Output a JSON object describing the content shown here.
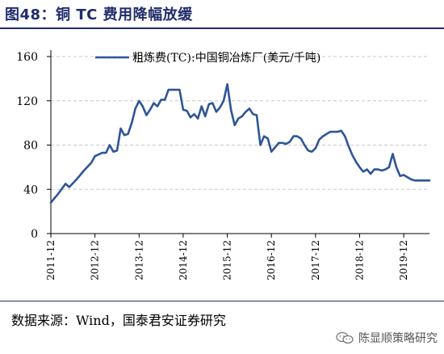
{
  "figure": {
    "title": "图48：铜 TC 费用降幅放缓",
    "source": "数据来源：Wind，国泰君安证券研究",
    "watermark": "陈显顺策略研究"
  },
  "colors": {
    "line": "#2e5597",
    "title": "#1f2d6b",
    "grid": "#c8c8c8"
  },
  "chart_data": {
    "type": "line",
    "title": "",
    "xlabel": "",
    "ylabel": "",
    "ylim": [
      0,
      160
    ],
    "yticks": [
      0,
      40,
      80,
      120,
      160
    ],
    "xlim": [
      "2011-12",
      "2020-07"
    ],
    "xticks": [
      "2011-12",
      "2012-12",
      "2013-12",
      "2014-12",
      "2015-12",
      "2016-12",
      "2017-12",
      "2018-12",
      "2019-12"
    ],
    "grid": "horizontal dashed",
    "legend": "top",
    "series": [
      {
        "name": "粗炼费(TC):中国铜冶炼厂(美元/千吨)",
        "x": [
          "2011-12",
          "2012-02",
          "2012-04",
          "2012-05",
          "2012-07",
          "2012-09",
          "2012-11",
          "2012-12",
          "2013-02",
          "2013-03",
          "2013-04",
          "2013-05",
          "2013-06",
          "2013-07",
          "2013-08",
          "2013-09",
          "2013-10",
          "2013-11",
          "2013-12",
          "2014-01",
          "2014-02",
          "2014-03",
          "2014-04",
          "2014-05",
          "2014-06",
          "2014-07",
          "2014-08",
          "2014-09",
          "2014-10",
          "2014-11",
          "2014-12",
          "2015-01",
          "2015-02",
          "2015-03",
          "2015-04",
          "2015-05",
          "2015-06",
          "2015-07",
          "2015-08",
          "2015-09",
          "2015-10",
          "2015-11",
          "2015-12",
          "2016-01",
          "2016-02",
          "2016-03",
          "2016-04",
          "2016-05",
          "2016-06",
          "2016-07",
          "2016-08",
          "2016-09",
          "2016-10",
          "2016-11",
          "2016-12",
          "2017-01",
          "2017-02",
          "2017-03",
          "2017-04",
          "2017-05",
          "2017-06",
          "2017-07",
          "2017-08",
          "2017-09",
          "2017-10",
          "2017-11",
          "2017-12",
          "2018-01",
          "2018-02",
          "2018-03",
          "2018-04",
          "2018-05",
          "2018-06",
          "2018-07",
          "2018-08",
          "2018-09",
          "2018-10",
          "2018-11",
          "2018-12",
          "2019-01",
          "2019-02",
          "2019-03",
          "2019-04",
          "2019-05",
          "2019-06",
          "2019-07",
          "2019-08",
          "2019-09",
          "2019-10",
          "2019-11",
          "2019-12",
          "2020-01",
          "2020-02",
          "2020-03",
          "2020-04",
          "2020-05",
          "2020-06",
          "2020-07"
        ],
        "values": [
          28,
          36,
          45,
          42,
          49,
          57,
          64,
          70,
          73,
          73,
          80,
          74,
          75,
          95,
          89,
          90,
          100,
          113,
          120,
          115,
          107,
          112,
          118,
          115,
          121,
          121,
          130,
          130,
          130,
          130,
          112,
          111,
          105,
          108,
          104,
          115,
          106,
          117,
          118,
          110,
          114,
          120,
          135,
          112,
          98,
          104,
          106,
          110,
          113,
          108,
          107,
          80,
          88,
          86,
          74,
          78,
          82,
          82,
          81,
          83,
          88,
          88,
          86,
          80,
          75,
          74,
          77,
          85,
          88,
          90,
          92,
          92,
          92,
          93,
          88,
          79,
          71,
          65,
          60,
          56,
          58,
          54,
          58,
          58,
          57,
          58,
          60,
          72,
          60,
          52,
          53,
          51,
          49,
          48,
          48,
          48,
          48,
          48
        ]
      }
    ]
  }
}
